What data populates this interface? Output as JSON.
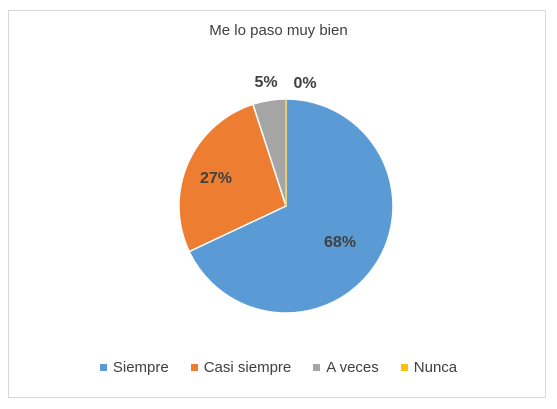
{
  "chart_data": {
    "type": "pie",
    "title": "Me lo paso muy bien",
    "categories": [
      "Siempre",
      "Casi siempre",
      "A veces",
      "Nunca"
    ],
    "values": [
      68,
      27,
      5,
      0
    ],
    "data_labels": [
      "68%",
      "27%",
      "5%",
      "0%"
    ],
    "colors": [
      "#5b9bd5",
      "#ed7d31",
      "#a5a5a5",
      "#ffc000"
    ],
    "legend": {
      "placement": "bottom",
      "entries": [
        "Siempre",
        "Casi siempre",
        "A veces",
        "Nunca"
      ]
    },
    "start_angle": "12 o'clock",
    "direction": "clockwise"
  }
}
